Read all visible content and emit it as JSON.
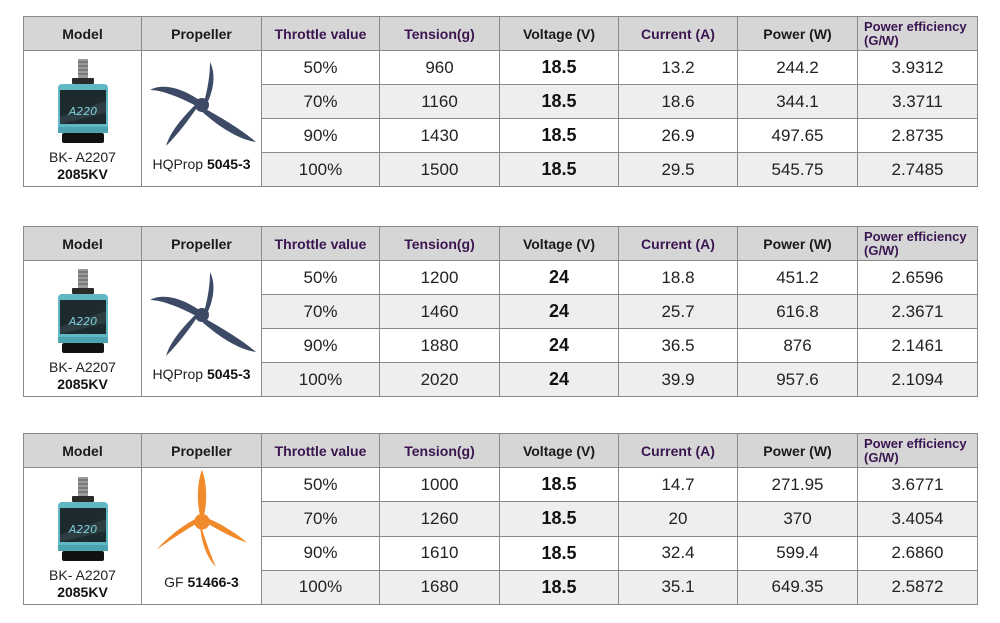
{
  "headers": {
    "model": "Model",
    "propeller": "Propeller",
    "throttle": "Throttle value",
    "tension": "Tension(g)",
    "voltage": "Voltage (V)",
    "current": "Current (A)",
    "power": "Power (W)",
    "efficiency_l1": "Power efficiency",
    "efficiency_l2": "(G/W)"
  },
  "colors": {
    "header_bg": "#d6d6d6",
    "alt_row_bg": "#eeeeee",
    "motor_teal": "#5fb8c4",
    "prop_navy": "#3d4a66",
    "prop_orange": "#f08a2a"
  },
  "tables": [
    {
      "model_name": "BK- A2207",
      "model_kv": "2085KV",
      "prop_prefix": "HQProp",
      "prop_model": "5045-3",
      "prop_icon": "navy-tri-blade-propeller-icon",
      "rows": [
        {
          "throttle": "50%",
          "tension": "960",
          "voltage": "18.5",
          "current": "13.2",
          "power": "244.2",
          "efficiency": "3.9312"
        },
        {
          "throttle": "70%",
          "tension": "1160",
          "voltage": "18.5",
          "current": "18.6",
          "power": "344.1",
          "efficiency": "3.3711"
        },
        {
          "throttle": "90%",
          "tension": "1430",
          "voltage": "18.5",
          "current": "26.9",
          "power": "497.65",
          "efficiency": "2.8735"
        },
        {
          "throttle": "100%",
          "tension": "1500",
          "voltage": "18.5",
          "current": "29.5",
          "power": "545.75",
          "efficiency": "2.7485"
        }
      ]
    },
    {
      "model_name": "BK- A2207",
      "model_kv": "2085KV",
      "prop_prefix": "HQProp",
      "prop_model": "5045-3",
      "prop_icon": "navy-tri-blade-propeller-icon",
      "rows": [
        {
          "throttle": "50%",
          "tension": "1200",
          "voltage": "24",
          "current": "18.8",
          "power": "451.2",
          "efficiency": "2.6596"
        },
        {
          "throttle": "70%",
          "tension": "1460",
          "voltage": "24",
          "current": "25.7",
          "power": "616.8",
          "efficiency": "2.3671"
        },
        {
          "throttle": "90%",
          "tension": "1880",
          "voltage": "24",
          "current": "36.5",
          "power": "876",
          "efficiency": "2.1461"
        },
        {
          "throttle": "100%",
          "tension": "2020",
          "voltage": "24",
          "current": "39.9",
          "power": "957.6",
          "efficiency": "2.1094"
        }
      ]
    },
    {
      "model_name": "BK- A2207",
      "model_kv": "2085KV",
      "prop_prefix": "GF",
      "prop_model": "51466-3",
      "prop_icon": "orange-tri-blade-propeller-icon",
      "rows": [
        {
          "throttle": "50%",
          "tension": "1000",
          "voltage": "18.5",
          "current": "14.7",
          "power": "271.95",
          "efficiency": "3.6771"
        },
        {
          "throttle": "70%",
          "tension": "1260",
          "voltage": "18.5",
          "current": "20",
          "power": "370",
          "efficiency": "3.4054"
        },
        {
          "throttle": "90%",
          "tension": "1610",
          "voltage": "18.5",
          "current": "32.4",
          "power": "599.4",
          "efficiency": "2.6860"
        },
        {
          "throttle": "100%",
          "tension": "1680",
          "voltage": "18.5",
          "current": "35.1",
          "power": "649.35",
          "efficiency": "2.5872"
        }
      ]
    }
  ]
}
